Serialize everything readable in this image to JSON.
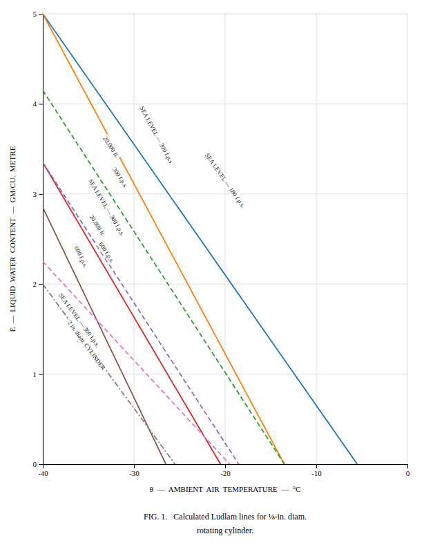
{
  "chart_data": {
    "type": "line",
    "xlabel": "θ  —  AMBIENT  AIR  TEMPERATURE  —  °C",
    "ylabel": "E  —  LIQUID  WATER  CONTENT  —  GM/CU.  METRE",
    "caption": [
      "FIG. 1.   Calculated Ludlam lines for ⅛-in. diam.",
      "rotating cylinder."
    ],
    "xlim": [
      -40,
      0
    ],
    "ylim": [
      0,
      5
    ],
    "xticks": [
      -40,
      -30,
      -20,
      -10,
      0
    ],
    "yticks": [
      0,
      1,
      2,
      3,
      4,
      5
    ],
    "grid": true,
    "series": [
      {
        "x": [
          -40,
          -5.5
        ],
        "values": [
          5.0,
          0.0
        ],
        "line_style": "solid",
        "annotations": [
          {
            "text": "SEA LEVEL — 180 f.p.s.",
            "x": -20.0,
            "y": 3.15
          }
        ]
      },
      {
        "x": [
          -40,
          -13.5
        ],
        "values": [
          5.0,
          0.0
        ],
        "line_style": "solid",
        "annotations": [
          {
            "text": "SEA LEVEL — 300 f.p.s.",
            "x": -27.5,
            "y": 3.65
          }
        ]
      },
      {
        "x": [
          -40,
          -13.5
        ],
        "values": [
          4.15,
          0.0
        ],
        "line_style": "dashed",
        "annotations": [
          {
            "text": "20,000 ft.",
            "x": -32.5,
            "y": 3.52
          },
          {
            "text": "300 f.p.s.",
            "x": -31.5,
            "y": 3.18
          }
        ]
      },
      {
        "x": [
          -40,
          -20.5
        ],
        "values": [
          3.35,
          0.0
        ],
        "line_style": "solid",
        "annotations": [
          {
            "text": "SEA LEVEL — 300 f.p.s.",
            "x": -33.0,
            "y": 2.85
          }
        ]
      },
      {
        "x": [
          -40,
          -18.5
        ],
        "values": [
          3.35,
          0.0
        ],
        "line_style": "dashed",
        "annotations": [
          {
            "text": "20,000 ft.",
            "x": -34.0,
            "y": 2.65
          },
          {
            "text": "600 f.p.s.",
            "x": -33.0,
            "y": 2.35
          }
        ]
      },
      {
        "x": [
          -40,
          -26.5
        ],
        "values": [
          2.85,
          0.0
        ],
        "line_style": "solid",
        "annotations": [
          {
            "text": "600 f.p.s.",
            "x": -35.8,
            "y": 2.3
          }
        ]
      },
      {
        "x": [
          -40,
          -19.5
        ],
        "values": [
          2.25,
          0.0
        ],
        "line_style": "dashed"
      },
      {
        "x": [
          -40,
          -25.5
        ],
        "values": [
          2.0,
          0.0
        ],
        "line_style": "dashdot",
        "annotations": [
          {
            "text": "SEA LEVEL — 300 f.p.s.",
            "x": -36.0,
            "y": 1.6
          },
          {
            "text": "2 in. diam. CYLINDER",
            "x": -35.2,
            "y": 1.32
          }
        ]
      }
    ]
  }
}
